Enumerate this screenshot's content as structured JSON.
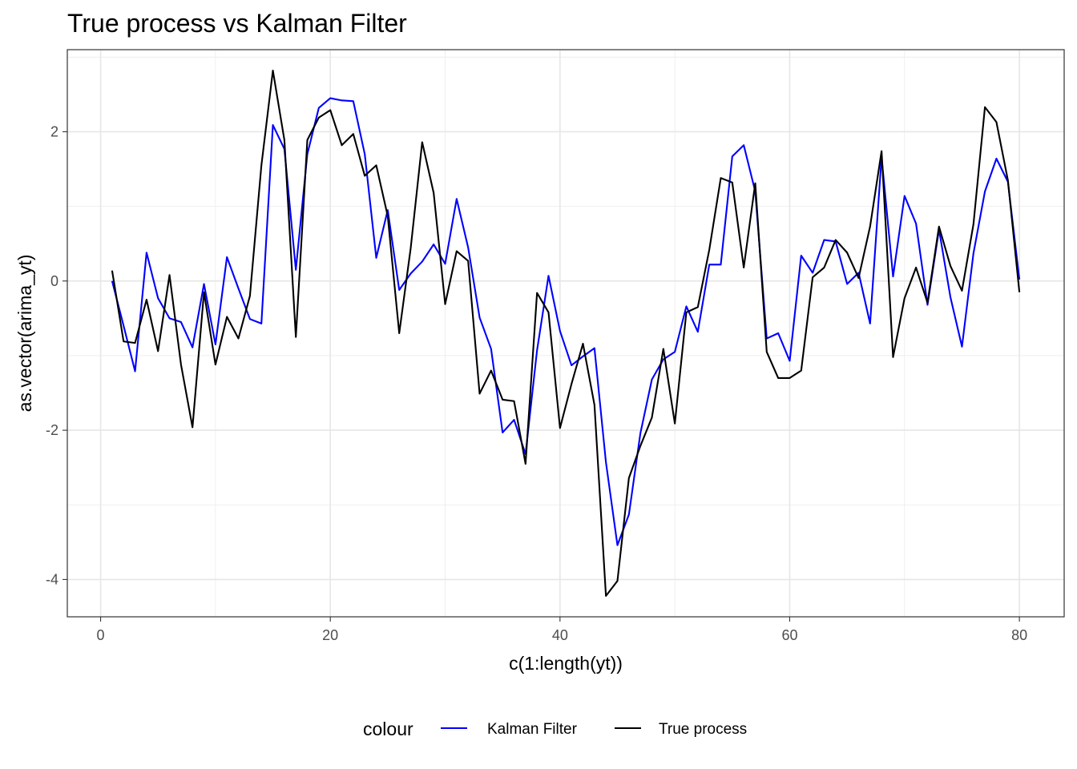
{
  "chart_data": {
    "type": "line",
    "title": "True process vs Kalman Filter",
    "xlabel": "c(1:length(yt))",
    "ylabel": "as.vector(arima_yt)",
    "xlim": [
      -2.9,
      83.9
    ],
    "ylim": [
      -4.5,
      3.1
    ],
    "x_ticks": [
      0,
      20,
      40,
      60,
      80
    ],
    "x_tick_labels": [
      "0",
      "20",
      "40",
      "60",
      "80"
    ],
    "y_ticks": [
      2,
      0,
      -2,
      -4
    ],
    "y_tick_labels": [
      "2",
      "0",
      "-2",
      "-4"
    ],
    "grid": true,
    "legend": {
      "title": "colour",
      "position": "bottom"
    },
    "x": [
      1,
      2,
      3,
      4,
      5,
      6,
      7,
      8,
      9,
      10,
      11,
      12,
      13,
      14,
      15,
      16,
      17,
      18,
      19,
      20,
      21,
      22,
      23,
      24,
      25,
      26,
      27,
      28,
      29,
      30,
      31,
      32,
      33,
      34,
      35,
      36,
      37,
      38,
      39,
      40,
      41,
      42,
      43,
      44,
      45,
      46,
      47,
      48,
      49,
      50,
      51,
      52,
      53,
      54,
      55,
      56,
      57,
      58,
      59,
      60,
      61,
      62,
      63,
      64,
      65,
      66,
      67,
      68,
      69,
      70,
      71,
      72,
      73,
      74,
      75,
      76,
      77,
      78,
      79,
      80
    ],
    "series": [
      {
        "name": "Kalman Filter",
        "color": "#0000ff",
        "values": [
          0.0,
          -0.6,
          -1.21,
          0.38,
          -0.23,
          -0.5,
          -0.55,
          -0.89,
          -0.04,
          -0.85,
          0.32,
          -0.1,
          -0.51,
          -0.57,
          2.09,
          1.77,
          0.15,
          1.7,
          2.32,
          2.45,
          2.42,
          2.41,
          1.7,
          0.31,
          0.95,
          -0.12,
          0.1,
          0.26,
          0.49,
          0.23,
          1.1,
          0.45,
          -0.49,
          -0.91,
          -2.03,
          -1.86,
          -2.32,
          -0.93,
          0.07,
          -0.67,
          -1.13,
          -1.01,
          -0.9,
          -2.43,
          -3.54,
          -3.13,
          -2.04,
          -1.32,
          -1.05,
          -0.95,
          -0.34,
          -0.68,
          0.22,
          0.22,
          1.67,
          1.82,
          1.2,
          -0.77,
          -0.7,
          -1.07,
          0.34,
          0.11,
          0.55,
          0.53,
          -0.04,
          0.11,
          -0.57,
          1.66,
          0.06,
          1.14,
          0.77,
          -0.32,
          0.69,
          -0.22,
          -0.88,
          0.37,
          1.2,
          1.64,
          1.33,
          0.02
        ]
      },
      {
        "name": "True process",
        "color": "#000000",
        "values": [
          0.14,
          -0.81,
          -0.83,
          -0.25,
          -0.94,
          0.08,
          -1.12,
          -1.96,
          -0.15,
          -1.12,
          -0.48,
          -0.77,
          -0.2,
          1.55,
          2.82,
          1.89,
          -0.75,
          1.89,
          2.19,
          2.29,
          1.82,
          1.97,
          1.41,
          1.55,
          0.87,
          -0.7,
          0.44,
          1.86,
          1.18,
          -0.31,
          0.4,
          0.27,
          -1.51,
          -1.2,
          -1.59,
          -1.61,
          -2.45,
          -0.16,
          -0.42,
          -1.97,
          -1.38,
          -0.84,
          -1.66,
          -4.22,
          -4.02,
          -2.64,
          -2.21,
          -1.83,
          -0.91,
          -1.91,
          -0.42,
          -0.35,
          0.42,
          1.38,
          1.32,
          0.18,
          1.31,
          -0.95,
          -1.3,
          -1.3,
          -1.2,
          0.05,
          0.18,
          0.55,
          0.38,
          0.04,
          0.73,
          1.74,
          -1.02,
          -0.23,
          0.18,
          -0.29,
          0.73,
          0.2,
          -0.13,
          0.76,
          2.33,
          2.13,
          1.35,
          -0.15
        ]
      }
    ]
  }
}
